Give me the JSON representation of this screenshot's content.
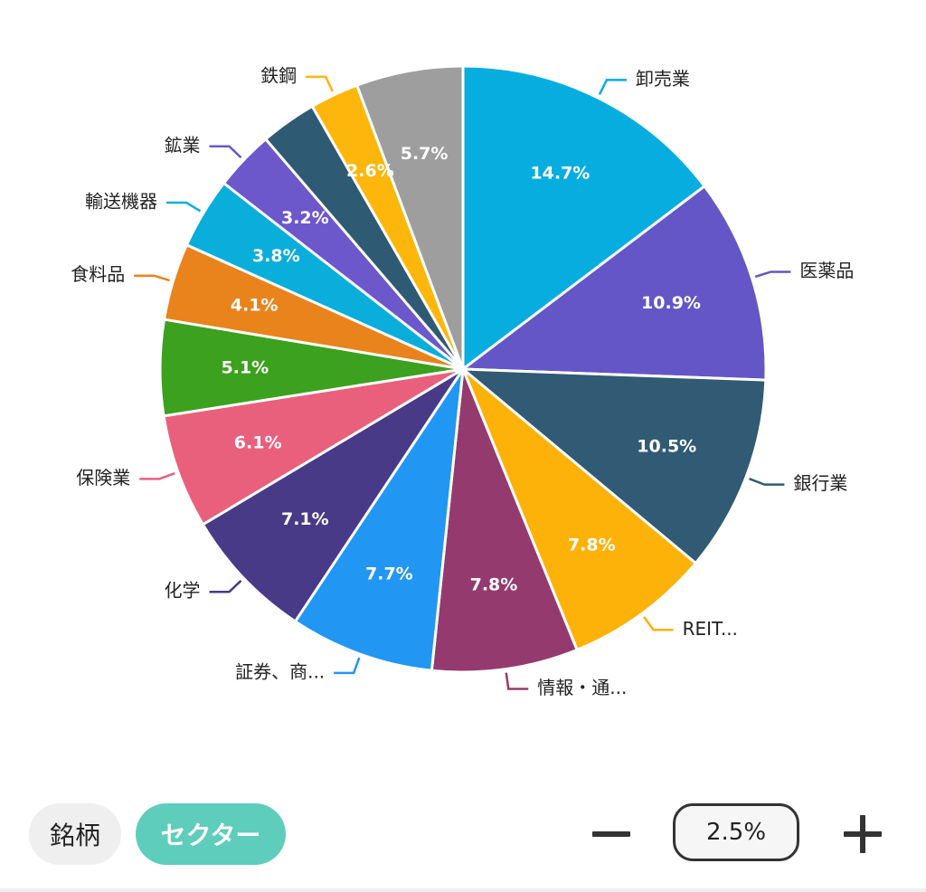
{
  "chart_data": {
    "type": "pie",
    "start_angle_deg": 0,
    "direction": "clockwise",
    "slices": [
      {
        "label": "卸売業",
        "value": 14.7,
        "value_label": "14.7%",
        "color": "#08ade0"
      },
      {
        "label": "医薬品",
        "value": 10.9,
        "value_label": "10.9%",
        "color": "#6456c6"
      },
      {
        "label": "銀行業",
        "value": 10.5,
        "value_label": "10.5%",
        "color": "#315a74"
      },
      {
        "label": "REIT...",
        "value": 7.8,
        "value_label": "7.8%",
        "color": "#fdb20a"
      },
      {
        "label": "情報・通...",
        "value": 7.8,
        "value_label": "7.8%",
        "color": "#953a6e"
      },
      {
        "label": "証券、商...",
        "value": 7.7,
        "value_label": "7.7%",
        "color": "#2196f3"
      },
      {
        "label": "化学",
        "value": 7.1,
        "value_label": "7.1%",
        "color": "#483a87"
      },
      {
        "label": "保険業",
        "value": 6.1,
        "value_label": "6.1%",
        "color": "#e9607d"
      },
      {
        "label": "",
        "value": 5.1,
        "value_label": "5.1%",
        "color": "#3ca11e"
      },
      {
        "label": "食料品",
        "value": 4.1,
        "value_label": "4.1%",
        "color": "#e9831c"
      },
      {
        "label": "輸送機器",
        "value": 3.8,
        "value_label": "3.8%",
        "color": "#0aaedb"
      },
      {
        "label": "鉱業",
        "value": 3.2,
        "value_label": "3.2%",
        "color": "#6c57cb"
      },
      {
        "label": "",
        "value": 3.0,
        "value_label": "",
        "color": "#2f5a73"
      },
      {
        "label": "鉄鋼",
        "value": 2.6,
        "value_label": "2.6%",
        "color": "#fdb70c"
      },
      {
        "label": "",
        "value": 5.7,
        "value_label": "5.7%",
        "color": "#9e9e9e"
      }
    ]
  },
  "controls": {
    "tab_stock": "銘柄",
    "tab_sector": "セクター",
    "threshold_value": "2.5%",
    "minus_icon": "minus-icon",
    "plus_icon": "plus-icon",
    "active_tab": "セクター"
  }
}
